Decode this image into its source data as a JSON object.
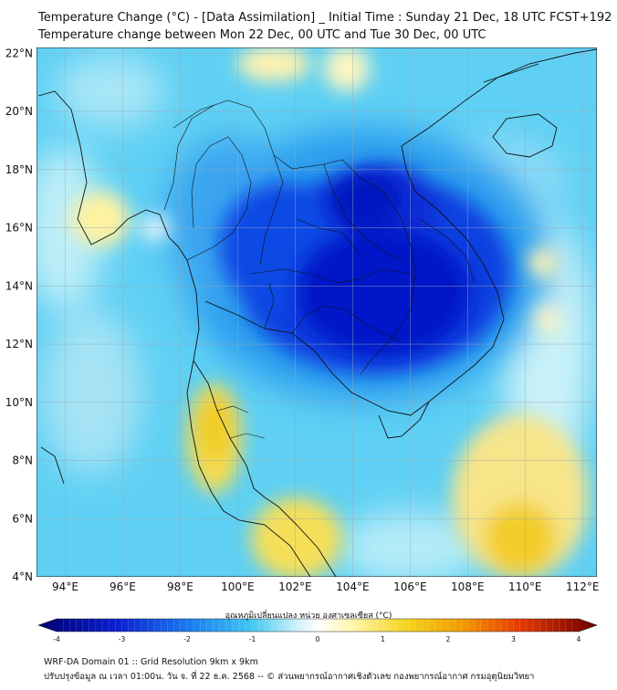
{
  "header": {
    "title_line1": "Temperature Change (°C) - [Data Assimilation] _ Initial Time : Sunday 21 Dec, 18 UTC FCST+192",
    "title_line2": "Temperature change between Mon 22 Dec, 00 UTC and Tue 30 Dec, 00 UTC"
  },
  "map": {
    "lat_labels": [
      "22°N",
      "20°N",
      "18°N",
      "16°N",
      "14°N",
      "12°N",
      "10°N",
      "8°N",
      "6°N",
      "4°N"
    ],
    "lon_labels": [
      "94°E",
      "96°E",
      "98°E",
      "100°E",
      "102°E",
      "104°E",
      "106°E",
      "108°E",
      "110°E",
      "112°E"
    ],
    "lat_range": [
      4,
      22.2
    ],
    "lon_range": [
      93,
      112.5
    ],
    "fields": [
      {
        "name": "cold-core",
        "lon": 104.6,
        "lat": 14.2,
        "value": -3.0
      },
      {
        "name": "cold-east",
        "lon": 107.5,
        "lat": 13.5,
        "value": -2.5
      },
      {
        "name": "cold-north",
        "lon": 104.5,
        "lat": 17.2,
        "value": -2.2
      },
      {
        "name": "warm-southern-thailand",
        "lon": 99.3,
        "lat": 8.5,
        "value": 1.2
      },
      {
        "name": "warm-malay",
        "lon": 102.2,
        "lat": 5.2,
        "value": 1.3
      },
      {
        "name": "warm-south-china-sea",
        "lon": 110.0,
        "lat": 5.3,
        "value": 1.8
      },
      {
        "name": "warm-myanmar-coast",
        "lon": 95.2,
        "lat": 16.0,
        "value": 0.8
      },
      {
        "name": "warm-east-sea",
        "lon": 110.4,
        "lat": 14.9,
        "value": 0.7
      }
    ]
  },
  "colorbar": {
    "label": "อุณหภูมิเปลี่ยนแปลง หน่วย องศาเซลเซียส (°C)",
    "ticks": [
      "-4",
      "-3",
      "-2",
      "-1",
      "0",
      "1",
      "2",
      "3",
      "4"
    ],
    "range": [
      -4,
      4
    ],
    "colors": {
      "very_cold": "#00008f",
      "cold": "#0a3fe0",
      "cool": "#2aa8f2",
      "light_cool": "#aee8f8",
      "neutral": "#ffffff",
      "light_warm": "#fff3a8",
      "warm": "#f2d21a",
      "hot": "#f08a00",
      "very_hot": "#7a0000"
    }
  },
  "footer": {
    "line1": "WRF-DA Domain 01 :: Grid Resolution 9km x 9km",
    "line2": "ปรับปรุงข้อมูล ณ เวลา 01:00น. วัน จ. ที่ 22 ธ.ค. 2568 -- © ส่วนพยากรณ์อากาศเชิงตัวเลข กองพยากรณ์อากาศ กรมอุตุนิยมวิทยา"
  }
}
